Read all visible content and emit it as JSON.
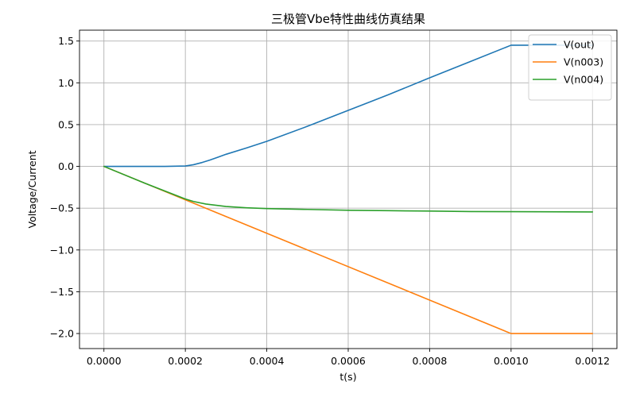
{
  "chart_data": {
    "type": "line",
    "title": "三极管Vbe特性曲线仿真结果",
    "xlabel": "t(s)",
    "ylabel": "Voltage/Current",
    "xlim": [
      -6e-05,
      0.00126
    ],
    "ylim": [
      -2.18,
      1.63
    ],
    "xticks": [
      0.0,
      0.0002,
      0.0004,
      0.0006,
      0.0008,
      0.001,
      0.0012
    ],
    "xtick_labels": [
      "0.0000",
      "0.0002",
      "0.0004",
      "0.0006",
      "0.0008",
      "0.0010",
      "0.0012"
    ],
    "yticks": [
      -2.0,
      -1.5,
      -1.0,
      -0.5,
      0.0,
      0.5,
      1.0,
      1.5
    ],
    "ytick_labels": [
      "−2.0",
      "−1.5",
      "−1.0",
      "−0.5",
      "0.0",
      "0.5",
      "1.0",
      "1.5"
    ],
    "grid": true,
    "legend_position": "top-right",
    "series": [
      {
        "name": "V(out)",
        "color": "#1f77b4",
        "x": [
          0,
          5e-05,
          0.0001,
          0.00015,
          0.0002,
          0.00022,
          0.00024,
          0.00026,
          0.00028,
          0.0003,
          0.00035,
          0.0004,
          0.0005,
          0.0006,
          0.0007,
          0.0008,
          0.0009,
          0.001,
          0.0012
        ],
        "y": [
          0,
          0,
          0,
          0,
          0.005,
          0.02,
          0.045,
          0.075,
          0.11,
          0.145,
          0.22,
          0.3,
          0.48,
          0.67,
          0.86,
          1.06,
          1.255,
          1.45,
          1.45
        ]
      },
      {
        "name": "V(n003)",
        "color": "#ff7f0e",
        "x": [
          0,
          0.001,
          0.0012
        ],
        "y": [
          0,
          -2.0,
          -2.0
        ]
      },
      {
        "name": "V(n004)",
        "color": "#2ca02c",
        "x": [
          0,
          0.0001,
          0.0002,
          0.00022,
          0.00025,
          0.0003,
          0.00035,
          0.0004,
          0.0005,
          0.0006,
          0.0007,
          0.0008,
          0.0009,
          0.001,
          0.0012
        ],
        "y": [
          0,
          -0.2,
          -0.39,
          -0.42,
          -0.45,
          -0.48,
          -0.495,
          -0.505,
          -0.515,
          -0.525,
          -0.53,
          -0.535,
          -0.54,
          -0.542,
          -0.545
        ]
      }
    ]
  }
}
